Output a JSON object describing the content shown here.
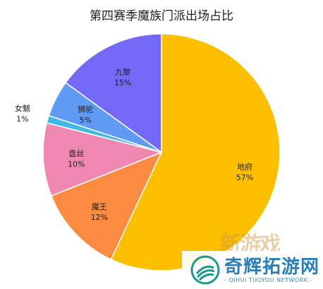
{
  "chart_data": {
    "type": "pie",
    "title": "第四赛季魔族门派出场占比",
    "slices": [
      {
        "name": "地府",
        "value": 57,
        "label": "57%",
        "color": "#fbbf00"
      },
      {
        "name": "魔王",
        "value": 12,
        "label": "12%",
        "color": "#fb8b40"
      },
      {
        "name": "盘丝",
        "value": 10,
        "label": "10%",
        "color": "#ef88b0"
      },
      {
        "name": "女魃",
        "value": 1,
        "label": "1%",
        "color": "#40b8e8"
      },
      {
        "name": "狮驼",
        "value": 5,
        "label": "5%",
        "color": "#5f9af5"
      },
      {
        "name": "九黎",
        "value": 15,
        "label": "15%",
        "color": "#7468f6"
      }
    ],
    "start_angle_deg": 0,
    "direction": "clockwise"
  },
  "watermark": {
    "name": "奇辉拓游网",
    "subtitle": "- QIHUI TUOYOU NETWORK -",
    "stamp": "新游戏"
  }
}
